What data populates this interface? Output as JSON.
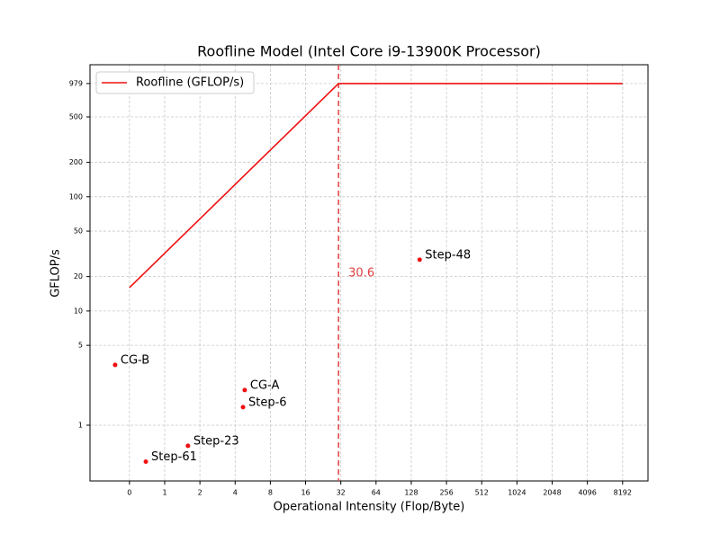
{
  "chart_data": {
    "type": "roofline",
    "title": "Roofline Model (Intel Core i9-13900K Processor)",
    "xlabel": "Operational Intensity (Flop/Byte)",
    "ylabel": "GFLOP/s",
    "xscale": "log2",
    "yscale": "log10",
    "xlim": [
      0.23,
      13500
    ],
    "ylim": [
      0.325,
      1430
    ],
    "xticks": [
      {
        "value": 0.5,
        "label": "0"
      },
      1,
      2,
      4,
      8,
      16,
      32,
      64,
      128,
      256,
      512,
      1024,
      2048,
      4096,
      8192
    ],
    "yticks": [
      1,
      5,
      10,
      20,
      50,
      100,
      200,
      500,
      979
    ],
    "grid": true,
    "legend": "upper left",
    "series": [
      {
        "name": "Roofline (GFLOP/s)",
        "color": "#ee1111",
        "x": [
          0.5,
          30.6,
          8192
        ],
        "values": [
          16,
          979,
          979
        ]
      }
    ],
    "ridge_point": 30.6,
    "ridge_color": "#e04040",
    "points": {
      "color": "#ee1111",
      "labels": [
        "CG-B",
        "CG-A",
        "Step-6",
        "Step-23",
        "Step-61",
        "Step-48"
      ],
      "x": [
        0.377,
        4.83,
        4.67,
        1.58,
        0.69,
        151
      ],
      "values": [
        3.37,
        2.03,
        1.44,
        0.66,
        0.48,
        28.1
      ]
    }
  }
}
